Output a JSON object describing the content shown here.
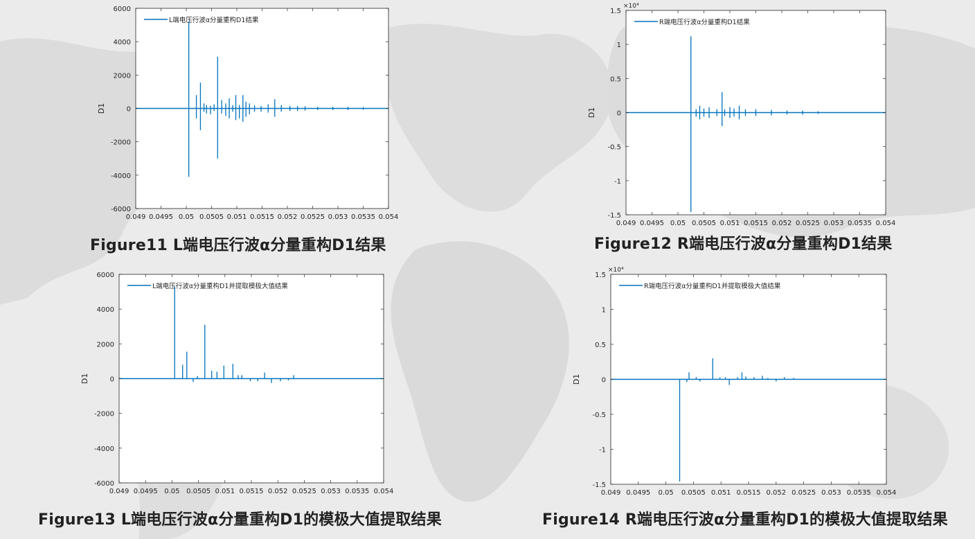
{
  "figures": [
    {
      "caption": "Figure11 L端电压行波α分量重构D1结果",
      "chart_data": {
        "type": "line",
        "legend": "L端电压行波α分量重构D1结果",
        "legend_position": "top-left",
        "ylabel": "D1",
        "xlim": [
          0.049,
          0.054
        ],
        "ylim": [
          -6000,
          6000
        ],
        "exponent": "",
        "x_ticks": [
          "0.049",
          "0.0495",
          "0.05",
          "0.0505",
          "0.051",
          "0.0515",
          "0.052",
          "0.0525",
          "0.053",
          "0.0535",
          "0.054"
        ],
        "y_ticks": [
          "-6000",
          "-4000",
          "-2000",
          "0",
          "2000",
          "4000",
          "6000"
        ],
        "grid": false,
        "spikes": [
          [
            0.05005,
            5200,
            -4100
          ],
          [
            0.0502,
            800,
            -600
          ],
          [
            0.05028,
            1550,
            -1300
          ],
          [
            0.05035,
            300,
            -200
          ],
          [
            0.0504,
            200,
            -300
          ],
          [
            0.05048,
            150,
            -350
          ],
          [
            0.05055,
            250,
            -150
          ],
          [
            0.05062,
            3100,
            -3000
          ],
          [
            0.0507,
            500,
            -300
          ],
          [
            0.05078,
            300,
            -450
          ],
          [
            0.05085,
            600,
            -600
          ],
          [
            0.05092,
            200,
            -200
          ],
          [
            0.05098,
            800,
            -700
          ],
          [
            0.05105,
            200,
            -600
          ],
          [
            0.05112,
            800,
            -800
          ],
          [
            0.05118,
            400,
            -500
          ],
          [
            0.05125,
            300,
            -350
          ],
          [
            0.05135,
            200,
            -200
          ],
          [
            0.05148,
            150,
            -200
          ],
          [
            0.05162,
            250,
            -250
          ],
          [
            0.05175,
            550,
            -500
          ],
          [
            0.05188,
            200,
            -200
          ],
          [
            0.05205,
            150,
            -150
          ],
          [
            0.0522,
            150,
            -150
          ],
          [
            0.05235,
            130,
            -130
          ],
          [
            0.0526,
            100,
            -100
          ],
          [
            0.0529,
            100,
            -100
          ],
          [
            0.0532,
            100,
            -100
          ],
          [
            0.0535,
            80,
            -80
          ]
        ]
      }
    },
    {
      "caption": "Figure12 R端电压行波α分量重构D1结果",
      "chart_data": {
        "type": "line",
        "legend": "R端电压行波α分量重构D1结果",
        "legend_position": "top-left",
        "ylabel": "D1",
        "xlim": [
          0.049,
          0.054
        ],
        "ylim": [
          -1.5,
          1.5
        ],
        "exponent": "×10⁴",
        "x_ticks": [
          "0.049",
          "0.0495",
          "0.05",
          "0.0505",
          "0.051",
          "0.0515",
          "0.052",
          "0.0525",
          "0.053",
          "0.0535",
          "0.054"
        ],
        "y_ticks": [
          "-1.5",
          "-1",
          "-0.5",
          "0",
          "0.5",
          "1",
          "1.5"
        ],
        "grid": false,
        "spikes": [
          [
            0.05025,
            1.12,
            -1.46
          ],
          [
            0.05035,
            0.05,
            -0.06
          ],
          [
            0.05042,
            0.1,
            -0.1
          ],
          [
            0.0505,
            0.06,
            -0.06
          ],
          [
            0.0506,
            0.08,
            -0.08
          ],
          [
            0.05075,
            0.05,
            -0.05
          ],
          [
            0.05085,
            0.3,
            -0.2
          ],
          [
            0.0509,
            0.05,
            -0.05
          ],
          [
            0.051,
            0.08,
            -0.08
          ],
          [
            0.05108,
            0.06,
            -0.06
          ],
          [
            0.05118,
            0.1,
            -0.1
          ],
          [
            0.0513,
            0.05,
            -0.05
          ],
          [
            0.0515,
            0.05,
            -0.05
          ],
          [
            0.0518,
            0.04,
            -0.04
          ],
          [
            0.0521,
            0.03,
            -0.03
          ],
          [
            0.0524,
            0.03,
            -0.03
          ],
          [
            0.0527,
            0.02,
            -0.02
          ]
        ]
      }
    },
    {
      "caption": "Figure13 L端电压行波α分量重构D1的模极大值提取结果",
      "chart_data": {
        "type": "line",
        "legend": "L端电压行波α分量重构D1并提取模极大值结果",
        "legend_position": "top-left",
        "ylabel": "D1",
        "xlim": [
          0.049,
          0.054
        ],
        "ylim": [
          -6000,
          6000
        ],
        "exponent": "",
        "x_ticks": [
          "0.049",
          "0.0495",
          "0.05",
          "0.0505",
          "0.051",
          "0.0515",
          "0.052",
          "0.0525",
          "0.053",
          "0.0535",
          "0.054"
        ],
        "y_ticks": [
          "-6000",
          "-4000",
          "-2000",
          "0",
          "2000",
          "4000",
          "6000"
        ],
        "grid": false,
        "spikes": [
          [
            0.05005,
            5300,
            0
          ],
          [
            0.0502,
            800,
            0
          ],
          [
            0.05028,
            1550,
            0
          ],
          [
            0.0504,
            0,
            -200
          ],
          [
            0.05048,
            150,
            0
          ],
          [
            0.05062,
            3100,
            0
          ],
          [
            0.05075,
            450,
            0
          ],
          [
            0.05085,
            400,
            0
          ],
          [
            0.05098,
            750,
            0
          ],
          [
            0.05115,
            850,
            0
          ],
          [
            0.05125,
            200,
            0
          ],
          [
            0.05132,
            200,
            0
          ],
          [
            0.05148,
            0,
            -150
          ],
          [
            0.05162,
            0,
            -150
          ],
          [
            0.05175,
            350,
            0
          ],
          [
            0.05188,
            0,
            -250
          ],
          [
            0.05205,
            0,
            -150
          ],
          [
            0.0522,
            0,
            -100
          ],
          [
            0.0523,
            200,
            0
          ]
        ]
      }
    },
    {
      "caption": "Figure14 R端电压行波α分量重构D1的模极大值提取结果",
      "chart_data": {
        "type": "line",
        "legend": "R端电压行波α分量重构D1并提取模极大值结果",
        "legend_position": "top-left",
        "ylabel": "D1",
        "xlim": [
          0.049,
          0.054
        ],
        "ylim": [
          -1.5,
          1.5
        ],
        "exponent": "×10⁴",
        "x_ticks": [
          "0.049",
          "0.0495",
          "0.05",
          "0.0505",
          "0.051",
          "0.0515",
          "0.052",
          "0.0525",
          "0.053",
          "0.0535",
          "0.054"
        ],
        "y_ticks": [
          "-1.5",
          "-1",
          "-0.5",
          "0",
          "0.5",
          "1",
          "1.5"
        ],
        "grid": false,
        "spikes": [
          [
            0.05025,
            0,
            -1.46
          ],
          [
            0.05038,
            0,
            -0.04
          ],
          [
            0.05042,
            0.1,
            0
          ],
          [
            0.05055,
            0.03,
            0
          ],
          [
            0.05062,
            0,
            -0.03
          ],
          [
            0.05085,
            0.3,
            0
          ],
          [
            0.05098,
            0.03,
            0
          ],
          [
            0.05108,
            0.03,
            0
          ],
          [
            0.05115,
            0,
            -0.08
          ],
          [
            0.0513,
            0.03,
            0
          ],
          [
            0.05138,
            0.1,
            0
          ],
          [
            0.05145,
            0.04,
            0
          ],
          [
            0.0516,
            0.03,
            0
          ],
          [
            0.05175,
            0.05,
            0
          ],
          [
            0.05185,
            0.02,
            0
          ],
          [
            0.052,
            0,
            -0.03
          ],
          [
            0.05215,
            0.03,
            0
          ],
          [
            0.05232,
            0.02,
            0
          ]
        ]
      }
    }
  ]
}
